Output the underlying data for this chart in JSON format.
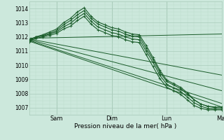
{
  "background_color": "#cce8dc",
  "plot_bg_color": "#cce8dc",
  "grid_major_color": "#aaccbb",
  "grid_minor_color": "#bbddcc",
  "line_color": "#1a5c2a",
  "xlabel": "Pression niveau de la mer( hPa )",
  "ylim": [
    1006.5,
    1014.5
  ],
  "yticks": [
    1007,
    1008,
    1009,
    1010,
    1011,
    1012,
    1013,
    1014
  ],
  "xtick_labels": [
    "Sam",
    "Dim",
    "Lun",
    "Mar"
  ],
  "xtick_positions": [
    24,
    72,
    120,
    168
  ],
  "vline_positions": [
    24,
    72,
    120,
    168
  ],
  "total_hours": 168,
  "series_dotted": [
    {
      "x": [
        0,
        6,
        12,
        18,
        24,
        30,
        36,
        42,
        48,
        54,
        60,
        66,
        72,
        78,
        84,
        90,
        96,
        102,
        108,
        114,
        120,
        126,
        132,
        138,
        144,
        150,
        156,
        162,
        168
      ],
      "y": [
        1011.8,
        1012.0,
        1012.15,
        1012.35,
        1012.55,
        1013.0,
        1013.3,
        1013.75,
        1014.05,
        1013.45,
        1013.05,
        1012.85,
        1012.65,
        1012.55,
        1012.35,
        1012.2,
        1012.15,
        1011.4,
        1010.55,
        1009.65,
        1008.95,
        1008.7,
        1008.45,
        1008.05,
        1007.55,
        1007.25,
        1007.1,
        1007.05,
        1007.05
      ]
    },
    {
      "x": [
        0,
        6,
        12,
        18,
        24,
        30,
        36,
        42,
        48,
        54,
        60,
        66,
        72,
        78,
        84,
        90,
        96,
        102,
        108,
        114,
        120,
        126,
        132,
        138,
        144,
        150,
        156,
        162,
        168
      ],
      "y": [
        1011.75,
        1012.0,
        1012.1,
        1012.25,
        1012.45,
        1012.85,
        1013.15,
        1013.55,
        1013.85,
        1013.3,
        1012.9,
        1012.7,
        1012.5,
        1012.4,
        1012.2,
        1012.05,
        1012.0,
        1011.2,
        1010.4,
        1009.5,
        1008.85,
        1008.6,
        1008.35,
        1007.95,
        1007.55,
        1007.25,
        1007.1,
        1007.0,
        1007.0
      ]
    },
    {
      "x": [
        0,
        6,
        12,
        18,
        24,
        30,
        36,
        42,
        48,
        54,
        60,
        66,
        72,
        78,
        84,
        90,
        96,
        102,
        108,
        114,
        120,
        126,
        132,
        138,
        144,
        150,
        156,
        162,
        168
      ],
      "y": [
        1011.7,
        1012.0,
        1012.05,
        1012.2,
        1012.35,
        1012.7,
        1012.95,
        1013.35,
        1013.65,
        1013.1,
        1012.7,
        1012.5,
        1012.3,
        1012.2,
        1012.0,
        1011.85,
        1011.8,
        1011.0,
        1010.2,
        1009.3,
        1008.65,
        1008.4,
        1008.15,
        1007.75,
        1007.35,
        1007.1,
        1006.95,
        1006.9,
        1006.9
      ]
    },
    {
      "x": [
        0,
        6,
        12,
        18,
        24,
        30,
        36,
        42,
        48,
        54,
        60,
        66,
        72,
        78,
        84,
        90,
        96,
        102,
        108,
        114,
        120,
        126,
        132,
        138,
        144,
        150,
        156,
        162,
        168
      ],
      "y": [
        1011.65,
        1011.9,
        1012.0,
        1012.1,
        1012.25,
        1012.55,
        1012.75,
        1013.15,
        1013.45,
        1012.9,
        1012.5,
        1012.3,
        1012.1,
        1012.0,
        1011.8,
        1011.65,
        1011.6,
        1010.75,
        1009.9,
        1009.05,
        1008.45,
        1008.2,
        1007.95,
        1007.55,
        1007.15,
        1006.95,
        1006.85,
        1006.85,
        1006.85
      ]
    }
  ],
  "series_straight": [
    {
      "x": [
        0,
        168
      ],
      "y": [
        1011.9,
        1012.2
      ]
    },
    {
      "x": [
        0,
        168
      ],
      "y": [
        1011.85,
        1009.3
      ]
    },
    {
      "x": [
        0,
        168
      ],
      "y": [
        1011.8,
        1008.2
      ]
    },
    {
      "x": [
        0,
        168
      ],
      "y": [
        1011.75,
        1007.3
      ]
    },
    {
      "x": [
        0,
        168
      ],
      "y": [
        1011.7,
        1007.05
      ]
    }
  ]
}
